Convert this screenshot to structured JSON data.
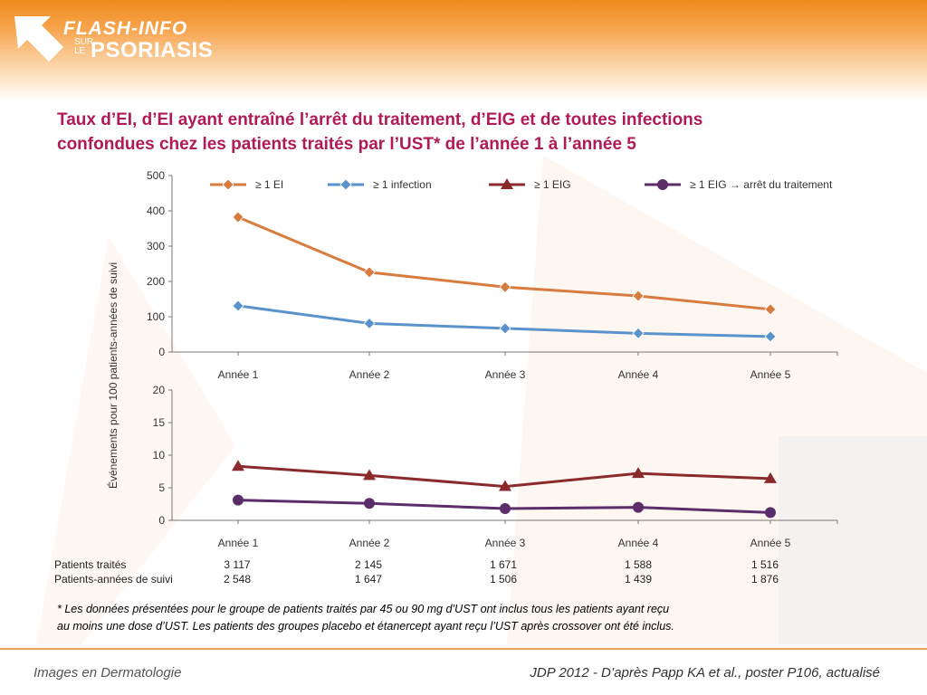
{
  "header": {
    "logo_top": "FLASH-INFO",
    "logo_sur": "SUR",
    "logo_le": "LE",
    "logo_main": "PSORIASIS",
    "accent": "#f08a1c"
  },
  "title": {
    "line1": "Taux d’EI, d’EI ayant entraîné l’arrêt du traitement, d’EIG et de toutes infections",
    "line2": "confondues chez les patients traités par l’UST* de l’année 1 à l’année 5",
    "color": "#b01a56"
  },
  "chart_data": {
    "type": "line",
    "ylabel": "Événements pour 100 patients-années de suivi",
    "categories": [
      "Année 1",
      "Année 2",
      "Année 3",
      "Année 4",
      "Année 5"
    ],
    "legend_position": "top",
    "panels": [
      {
        "ylim": [
          0,
          500
        ],
        "yticks": [
          0,
          100,
          200,
          300,
          400,
          500
        ],
        "series": [
          {
            "name": "≥ 1 EI",
            "marker": "diamond",
            "color": "#d77b3e",
            "values": [
              382,
              226,
              184,
              159,
              121
            ]
          },
          {
            "name": "≥ 1 infection",
            "marker": "diamond",
            "color": "#5a93cc",
            "values": [
              131,
              81,
              67,
              53,
              44
            ]
          }
        ]
      },
      {
        "ylim": [
          0,
          20
        ],
        "yticks": [
          0,
          5,
          10,
          15,
          20
        ],
        "series": [
          {
            "name": "≥ 1 EIG",
            "marker": "triangle",
            "color": "#8b2a2c",
            "values": [
              8.3,
              6.9,
              5.2,
              7.2,
              6.4
            ]
          },
          {
            "name": "≥ 1 EIG → arrêt du traitement",
            "marker": "circle",
            "color": "#5b2d6a",
            "values": [
              3.1,
              2.6,
              1.8,
              2.0,
              1.2
            ]
          }
        ]
      }
    ]
  },
  "table": {
    "rows": [
      {
        "label": "Patients traités",
        "values": [
          "3 117",
          "2 145",
          "1 671",
          "1 588",
          "1 516"
        ]
      },
      {
        "label": "Patients-années de suivi",
        "values": [
          "2 548",
          "1 647",
          "1 506",
          "1 439",
          "1 876"
        ]
      }
    ]
  },
  "footnote": {
    "line1": "* Les données présentées pour le groupe de patients traités par 45 ou 90 mg d’UST ont inclus tous les patients ayant reçu",
    "line2": "au moins une dose d’UST. Les patients des groupes placebo et étanercept ayant reçu l’UST après crossover ont été inclus."
  },
  "footer": {
    "left": "Images en Dermatologie",
    "right": "JDP 2012 - D’après Papp KA et al., poster P106, actualisé"
  }
}
